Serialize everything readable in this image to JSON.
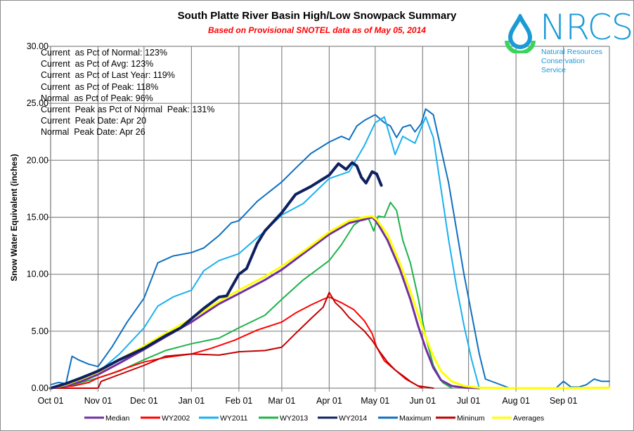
{
  "chart_data": {
    "type": "line",
    "title": "South Platte River Basin High/Low Snowpack Summary",
    "subtitle": "Based on Provisional SNOTEL data as of May 05, 2014",
    "xlabel": "",
    "ylabel": "Snow Water Equivalent (inches)",
    "ylim": [
      0,
      30
    ],
    "yticks": [
      "0.00",
      "5.00",
      "10.00",
      "15.00",
      "20.00",
      "25.00",
      "30.00"
    ],
    "ytick_values": [
      0,
      5,
      10,
      15,
      20,
      25,
      30
    ],
    "xlim_days": [
      0,
      365
    ],
    "xticks": [
      "Oct 01",
      "Nov 01",
      "Dec 01",
      "Jan 01",
      "Feb 01",
      "Mar 01",
      "Apr 01",
      "May 01",
      "Jun 01",
      "Jul 01",
      "Aug 01",
      "Sep 01"
    ],
    "xtick_days": [
      0,
      31,
      61,
      92,
      123,
      151,
      182,
      212,
      243,
      273,
      304,
      335
    ],
    "grid": true,
    "legend_position": "bottom",
    "x_unit": "days since Oct 01",
    "series": [
      {
        "name": "Median",
        "color": "#7030a0",
        "width": 3,
        "x": [
          0,
          10,
          20,
          31,
          45,
          61,
          75,
          92,
          110,
          123,
          140,
          151,
          165,
          182,
          195,
          205,
          210,
          213,
          220,
          228,
          235,
          240,
          245,
          250,
          255,
          262,
          270,
          280
        ],
        "y": [
          0,
          0.2,
          0.6,
          1.2,
          2.2,
          3.4,
          4.5,
          5.8,
          7.4,
          8.3,
          9.5,
          10.4,
          11.8,
          13.5,
          14.5,
          14.8,
          15.0,
          14.6,
          13.0,
          10.5,
          7.8,
          5.5,
          3.5,
          1.8,
          0.7,
          0.2,
          0.05,
          0
        ]
      },
      {
        "name": "WY2002",
        "color": "#ff0000",
        "width": 2,
        "x": [
          0,
          15,
          25,
          31,
          40,
          50,
          61,
          75,
          92,
          105,
          120,
          135,
          151,
          160,
          170,
          178,
          182,
          190,
          198,
          205,
          210,
          213,
          218,
          225,
          232,
          240,
          243
        ],
        "y": [
          0,
          0.2,
          0.5,
          0.9,
          1.3,
          1.8,
          2.3,
          2.7,
          3.0,
          3.5,
          4.2,
          5.1,
          5.8,
          6.6,
          7.3,
          7.8,
          8.0,
          7.5,
          6.9,
          5.9,
          4.8,
          3.6,
          2.4,
          1.6,
          0.8,
          0.2,
          0
        ]
      },
      {
        "name": "WY2011",
        "color": "#1ab0f0",
        "width": 2,
        "x": [
          0,
          10,
          20,
          31,
          45,
          61,
          70,
          80,
          92,
          100,
          110,
          123,
          140,
          151,
          165,
          182,
          195,
          205,
          212,
          218,
          221,
          225,
          230,
          238,
          245,
          250,
          255,
          260,
          265,
          270,
          275,
          280
        ],
        "y": [
          0,
          0.3,
          0.8,
          1.4,
          3.0,
          5.3,
          7.2,
          8.0,
          8.6,
          10.3,
          11.2,
          11.8,
          13.8,
          15.2,
          16.2,
          18.4,
          19.0,
          21.3,
          23.3,
          23.8,
          22.4,
          20.5,
          22.1,
          21.5,
          23.8,
          22.0,
          17.5,
          13.0,
          9.0,
          5.5,
          2.5,
          0
        ]
      },
      {
        "name": "WY2013",
        "color": "#1db34a",
        "width": 2,
        "x": [
          0,
          15,
          31,
          45,
          61,
          75,
          92,
          110,
          123,
          140,
          151,
          165,
          182,
          190,
          198,
          205,
          208,
          211,
          214,
          218,
          222,
          226,
          230,
          235,
          240,
          245,
          250,
          256,
          262
        ],
        "y": [
          0,
          0.3,
          0.9,
          1.5,
          2.5,
          3.3,
          3.9,
          4.4,
          5.3,
          6.4,
          7.8,
          9.5,
          11.2,
          12.6,
          14.3,
          15.0,
          14.8,
          13.8,
          15.1,
          15.0,
          16.3,
          15.6,
          13.0,
          11.0,
          8.0,
          4.5,
          2.0,
          0.5,
          0
        ]
      },
      {
        "name": "WY2014",
        "color": "#0e2060",
        "width": 4,
        "x": [
          0,
          10,
          20,
          31,
          45,
          61,
          75,
          85,
          92,
          100,
          110,
          115,
          123,
          128,
          135,
          140,
          151,
          160,
          170,
          182,
          188,
          193,
          197,
          200,
          203,
          206,
          210,
          213,
          216
        ],
        "y": [
          0,
          0.4,
          0.9,
          1.5,
          2.5,
          3.5,
          4.6,
          5.3,
          6.1,
          7.0,
          8.0,
          8.1,
          10.0,
          10.5,
          12.7,
          13.8,
          15.4,
          17.0,
          17.7,
          18.7,
          19.7,
          19.2,
          19.8,
          19.5,
          18.5,
          18.0,
          19.0,
          18.8,
          17.8
        ]
      },
      {
        "name": "Maximum",
        "color": "#1070c0",
        "width": 2,
        "x": [
          0,
          5,
          10,
          14,
          18,
          25,
          31,
          40,
          50,
          61,
          70,
          80,
          92,
          100,
          110,
          118,
          123,
          135,
          151,
          160,
          170,
          182,
          190,
          195,
          200,
          205,
          212,
          218,
          222,
          226,
          230,
          235,
          238,
          242,
          245,
          250,
          255,
          260,
          265,
          270,
          275,
          280,
          284,
          300,
          330,
          335,
          340,
          345,
          350,
          355,
          360,
          365
        ],
        "y": [
          0.3,
          0.5,
          0.4,
          2.8,
          2.5,
          2.1,
          1.9,
          3.6,
          5.8,
          7.9,
          11.0,
          11.6,
          11.9,
          12.3,
          13.4,
          14.5,
          14.7,
          16.4,
          18.1,
          19.3,
          20.6,
          21.6,
          22.1,
          21.8,
          23.0,
          23.5,
          24.0,
          23.3,
          23.0,
          22.0,
          22.9,
          23.1,
          22.5,
          23.2,
          24.5,
          24.0,
          21.0,
          18.0,
          14.0,
          10.0,
          6.5,
          3.0,
          0.8,
          0,
          0,
          0.6,
          0.1,
          0.1,
          0.3,
          0.8,
          0.6,
          0.6
        ]
      },
      {
        "name": "Mininum",
        "color": "#c00000",
        "width": 2,
        "x": [
          0,
          20,
          31,
          33,
          45,
          61,
          75,
          92,
          110,
          123,
          140,
          151,
          160,
          170,
          178,
          182,
          186,
          190,
          195,
          200,
          205,
          210,
          215,
          220,
          225,
          230,
          235,
          240,
          245,
          250
        ],
        "y": [
          0,
          0,
          0,
          0.6,
          1.2,
          2.0,
          2.8,
          3.0,
          2.9,
          3.2,
          3.3,
          3.6,
          4.8,
          6.1,
          7.1,
          8.4,
          7.5,
          7.0,
          6.2,
          5.6,
          5.0,
          4.2,
          3.2,
          2.3,
          1.6,
          1.1,
          0.6,
          0.2,
          0.1,
          0
        ]
      },
      {
        "name": "Averages",
        "color": "#ffff00",
        "width": 3,
        "x": [
          0,
          10,
          20,
          31,
          45,
          61,
          75,
          92,
          110,
          123,
          140,
          151,
          165,
          182,
          195,
          205,
          210,
          213,
          220,
          228,
          235,
          240,
          245,
          250,
          255,
          262,
          270,
          280,
          300,
          330,
          365
        ],
        "y": [
          0,
          0.3,
          0.8,
          1.4,
          2.5,
          3.7,
          4.8,
          6.1,
          7.6,
          8.6,
          9.8,
          10.7,
          12.0,
          13.7,
          14.7,
          15.0,
          15.1,
          14.8,
          13.5,
          11.0,
          8.5,
          6.5,
          4.5,
          2.8,
          1.5,
          0.6,
          0.2,
          0.05,
          0,
          0,
          0.05
        ]
      }
    ]
  },
  "stats": [
    "Current  as Pct of Normal: 123%",
    "Current  as Pct of Avg: 123%",
    "Current  as Pct of Last Year: 119%",
    "Current  as Pct of Peak: 118%",
    "Normal  as Pct of Peak: 96%",
    "Current  Peak as Pct of Normal  Peak: 131%",
    "Current  Peak Date: Apr 20",
    "Normal  Peak Date: Apr 26"
  ],
  "logo": {
    "name": "NRCS",
    "line1": "Natural Resources",
    "line2": "Conservation Service",
    "blue": "#1c9ad6",
    "green": "#3bd35b"
  }
}
